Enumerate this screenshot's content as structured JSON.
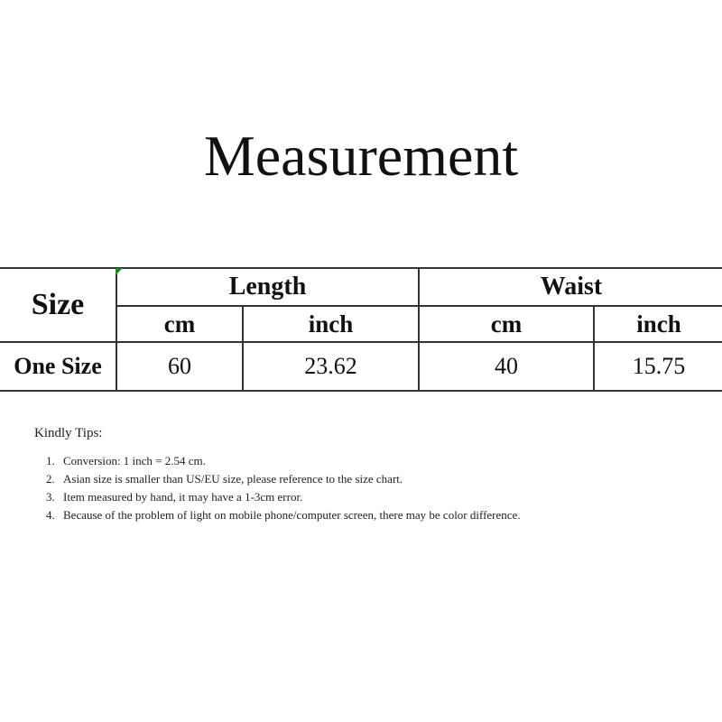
{
  "title": "Measurement",
  "table": {
    "size_header": "Size",
    "groups": [
      "Length",
      "Waist"
    ],
    "units": [
      "cm",
      "inch",
      "cm",
      "inch"
    ],
    "rows": [
      {
        "size": "One Size",
        "values": [
          "60",
          "23.62",
          "40",
          "15.75"
        ]
      }
    ]
  },
  "tips": {
    "heading": "Kindly Tips:",
    "items": [
      "Conversion: 1 inch = 2.54 cm.",
      "Asian size is smaller than US/EU size, please reference to the size chart.",
      "Item measured by hand, it may have a 1-3cm error.",
      "Because of the problem of light on mobile phone/computer screen, there may be color difference."
    ]
  }
}
